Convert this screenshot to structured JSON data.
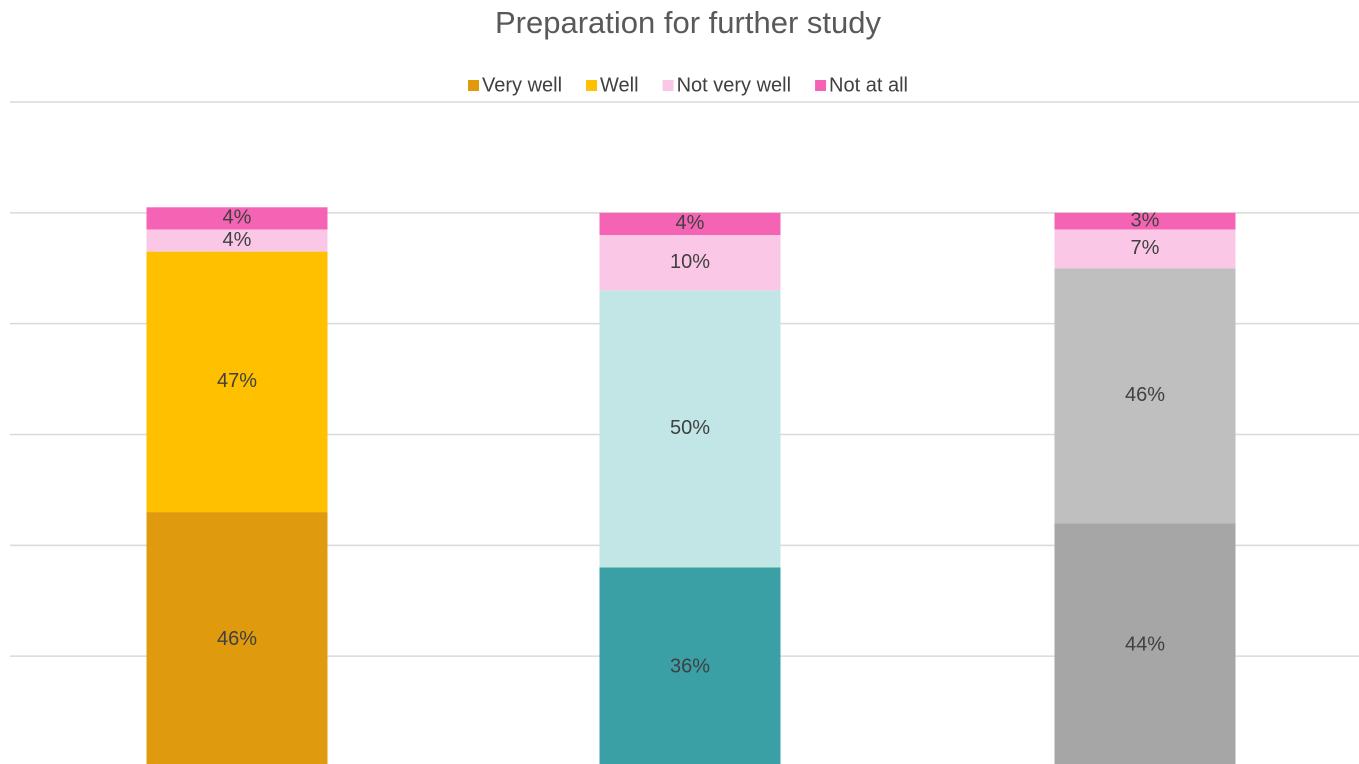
{
  "chart_data": {
    "type": "stacked_bar",
    "title": "Preparation for further study",
    "ylim": [
      0,
      120
    ],
    "yticks": [
      0,
      20,
      40,
      60,
      80,
      100,
      120
    ],
    "grid": true,
    "legend": "top",
    "series": [
      {
        "name": "Very well",
        "color": "#e09a0e",
        "colors": [
          "#e09a0e",
          "#3aa0a6",
          "#a6a6a6"
        ],
        "values": [
          46,
          36,
          44
        ],
        "value_labels": [
          "46%",
          "36%",
          "44%"
        ]
      },
      {
        "name": "Well",
        "color": "#ffc000",
        "colors": [
          "#ffc000",
          "#c2e6e6",
          "#bfbfbf"
        ],
        "values": [
          47,
          50,
          46
        ],
        "value_labels": [
          "47%",
          "50%",
          "46%"
        ]
      },
      {
        "name": "Not very well",
        "color": "#fac8e6",
        "colors": [
          "#fac8e6",
          "#fac8e6",
          "#fac8e6"
        ],
        "values": [
          4,
          10,
          7
        ],
        "value_labels": [
          "4%",
          "10%",
          "7%"
        ]
      },
      {
        "name": "Not at all",
        "color": "#f564b4",
        "colors": [
          "#f564b4",
          "#f564b4",
          "#f564b4"
        ],
        "values": [
          4,
          4,
          3
        ],
        "value_labels": [
          "4%",
          "4%",
          "3%"
        ]
      }
    ]
  }
}
